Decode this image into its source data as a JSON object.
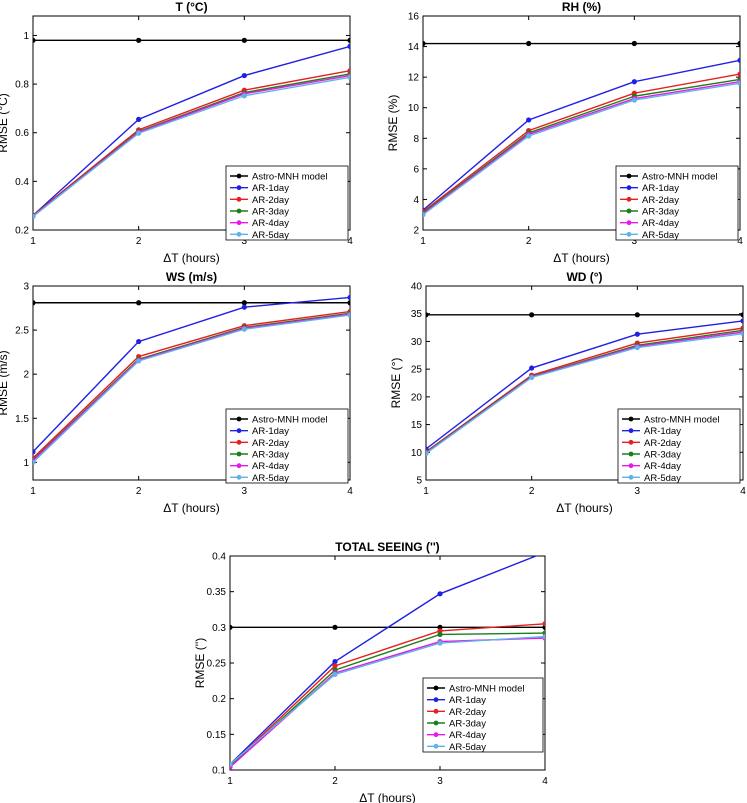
{
  "chart_data": [
    {
      "type": "line",
      "title": "T (°C)",
      "xlabel": "ΔT (hours)",
      "ylabel": "RMSE (°C)",
      "x": [
        1,
        2,
        3,
        4
      ],
      "xlim": [
        1,
        4
      ],
      "ylim": [
        0.2,
        1.08
      ],
      "xticks": [
        "1",
        "2",
        "3",
        "4"
      ],
      "yticks": [
        0.2,
        0.4,
        0.6,
        0.8,
        1.0
      ],
      "ytick_labels": [
        "0.2",
        "0.4",
        "0.6",
        "0.8",
        "1"
      ],
      "grid": false,
      "legend": "bottom-right",
      "series": [
        {
          "name": "Astro-MNH model",
          "color": "#000000",
          "values": [
            0.98,
            0.98,
            0.98,
            0.98
          ]
        },
        {
          "name": "AR-1day",
          "color": "#1f1fe6",
          "values": [
            0.26,
            0.655,
            0.835,
            0.955
          ]
        },
        {
          "name": "AR-2day",
          "color": "#e61f1f",
          "values": [
            0.26,
            0.612,
            0.775,
            0.855
          ]
        },
        {
          "name": "AR-3day",
          "color": "#1a7f1a",
          "values": [
            0.258,
            0.605,
            0.765,
            0.842
          ]
        },
        {
          "name": "AR-4day",
          "color": "#e619e6",
          "values": [
            0.257,
            0.602,
            0.76,
            0.835
          ]
        },
        {
          "name": "AR-5day",
          "color": "#5fb3e6",
          "values": [
            0.255,
            0.598,
            0.752,
            0.828
          ]
        }
      ]
    },
    {
      "type": "line",
      "title": "RH (%)",
      "xlabel": "ΔT (hours)",
      "ylabel": "RMSE (%)",
      "x": [
        1,
        2,
        3,
        4
      ],
      "xlim": [
        1,
        4
      ],
      "ylim": [
        2,
        16
      ],
      "xticks": [
        "1",
        "2",
        "3",
        "4"
      ],
      "yticks": [
        2,
        4,
        6,
        8,
        10,
        12,
        14,
        16
      ],
      "ytick_labels": [
        "2",
        "4",
        "6",
        "8",
        "10",
        "12",
        "14",
        "16"
      ],
      "grid": false,
      "legend": "bottom-right",
      "series": [
        {
          "name": "Astro-MNH model",
          "color": "#000000",
          "values": [
            14.2,
            14.2,
            14.2,
            14.2
          ]
        },
        {
          "name": "AR-1day",
          "color": "#1f1fe6",
          "values": [
            3.3,
            9.2,
            11.7,
            13.1
          ]
        },
        {
          "name": "AR-2day",
          "color": "#e61f1f",
          "values": [
            3.2,
            8.5,
            10.95,
            12.2
          ]
        },
        {
          "name": "AR-3day",
          "color": "#1a7f1a",
          "values": [
            3.1,
            8.35,
            10.75,
            11.85
          ]
        },
        {
          "name": "AR-4day",
          "color": "#e619e6",
          "values": [
            3.05,
            8.25,
            10.6,
            11.7
          ]
        },
        {
          "name": "AR-5day",
          "color": "#5fb3e6",
          "values": [
            3.0,
            8.15,
            10.5,
            11.6
          ]
        }
      ]
    },
    {
      "type": "line",
      "title": "WS (m/s)",
      "xlabel": "ΔT (hours)",
      "ylabel": "RMSE (m/s)",
      "x": [
        1,
        2,
        3,
        4
      ],
      "xlim": [
        1,
        4
      ],
      "ylim": [
        0.8,
        3.0
      ],
      "xticks": [
        "1",
        "2",
        "3",
        "4"
      ],
      "yticks": [
        1,
        1.5,
        2,
        2.5,
        3
      ],
      "ytick_labels": [
        "1",
        "1.5",
        "2",
        "2.5",
        "3"
      ],
      "grid": false,
      "legend": "bottom-right",
      "series": [
        {
          "name": "Astro-MNH model",
          "color": "#000000",
          "values": [
            2.81,
            2.81,
            2.81,
            2.81
          ]
        },
        {
          "name": "AR-1day",
          "color": "#1f1fe6",
          "values": [
            1.12,
            2.37,
            2.76,
            2.87
          ]
        },
        {
          "name": "AR-2day",
          "color": "#e61f1f",
          "values": [
            1.05,
            2.2,
            2.55,
            2.71
          ]
        },
        {
          "name": "AR-3day",
          "color": "#1a7f1a",
          "values": [
            1.03,
            2.17,
            2.53,
            2.69
          ]
        },
        {
          "name": "AR-4day",
          "color": "#e619e6",
          "values": [
            1.02,
            2.16,
            2.52,
            2.68
          ]
        },
        {
          "name": "AR-5day",
          "color": "#5fb3e6",
          "values": [
            1.0,
            2.15,
            2.51,
            2.67
          ]
        }
      ]
    },
    {
      "type": "line",
      "title": "WD (°)",
      "xlabel": "ΔT (hours)",
      "ylabel": "RMSE (°)",
      "x": [
        1,
        2,
        3,
        4
      ],
      "xlim": [
        1,
        4
      ],
      "ylim": [
        5,
        40
      ],
      "xticks": [
        "1",
        "2",
        "3",
        "4"
      ],
      "yticks": [
        5,
        10,
        15,
        20,
        25,
        30,
        35,
        40
      ],
      "ytick_labels": [
        "5",
        "10",
        "15",
        "20",
        "25",
        "30",
        "35",
        "40"
      ],
      "grid": false,
      "legend": "bottom-right",
      "series": [
        {
          "name": "Astro-MNH model",
          "color": "#000000",
          "values": [
            34.8,
            34.8,
            34.8,
            34.8
          ]
        },
        {
          "name": "AR-1day",
          "color": "#1f1fe6",
          "values": [
            10.6,
            25.2,
            31.3,
            33.7
          ]
        },
        {
          "name": "AR-2day",
          "color": "#e61f1f",
          "values": [
            10.1,
            23.9,
            29.7,
            32.4
          ]
        },
        {
          "name": "AR-3day",
          "color": "#1a7f1a",
          "values": [
            10.0,
            23.7,
            29.3,
            32.0
          ]
        },
        {
          "name": "AR-4day",
          "color": "#e619e6",
          "values": [
            9.9,
            23.6,
            29.1,
            31.7
          ]
        },
        {
          "name": "AR-5day",
          "color": "#5fb3e6",
          "values": [
            9.8,
            23.5,
            28.9,
            31.4
          ]
        }
      ]
    },
    {
      "type": "line",
      "title": "TOTAL SEEING ('')",
      "xlabel": "ΔT (hours)",
      "ylabel": "RMSE ('')",
      "x": [
        1,
        2,
        3,
        4
      ],
      "xlim": [
        1,
        4
      ],
      "ylim": [
        0.1,
        0.4
      ],
      "xticks": [
        "1",
        "2",
        "3",
        "4"
      ],
      "yticks": [
        0.1,
        0.15,
        0.2,
        0.25,
        0.3,
        0.35,
        0.4
      ],
      "ytick_labels": [
        "0.1",
        "0.15",
        "0.2",
        "0.25",
        "0.3",
        "0.35",
        "0.4"
      ],
      "grid": false,
      "legend": "bottom-right",
      "series": [
        {
          "name": "Astro-MNH model",
          "color": "#000000",
          "values": [
            0.3,
            0.3,
            0.3,
            0.3
          ]
        },
        {
          "name": "AR-1day",
          "color": "#1f1fe6",
          "values": [
            0.108,
            0.252,
            0.347,
            0.405
          ]
        },
        {
          "name": "AR-2day",
          "color": "#e61f1f",
          "values": [
            0.106,
            0.246,
            0.295,
            0.305
          ]
        },
        {
          "name": "AR-3day",
          "color": "#1a7f1a",
          "values": [
            0.105,
            0.24,
            0.29,
            0.292
          ]
        },
        {
          "name": "AR-4day",
          "color": "#e619e6",
          "values": [
            0.104,
            0.236,
            0.28,
            0.285
          ]
        },
        {
          "name": "AR-5day",
          "color": "#5fb3e6",
          "values": [
            0.108,
            0.234,
            0.278,
            0.287
          ]
        }
      ]
    }
  ]
}
